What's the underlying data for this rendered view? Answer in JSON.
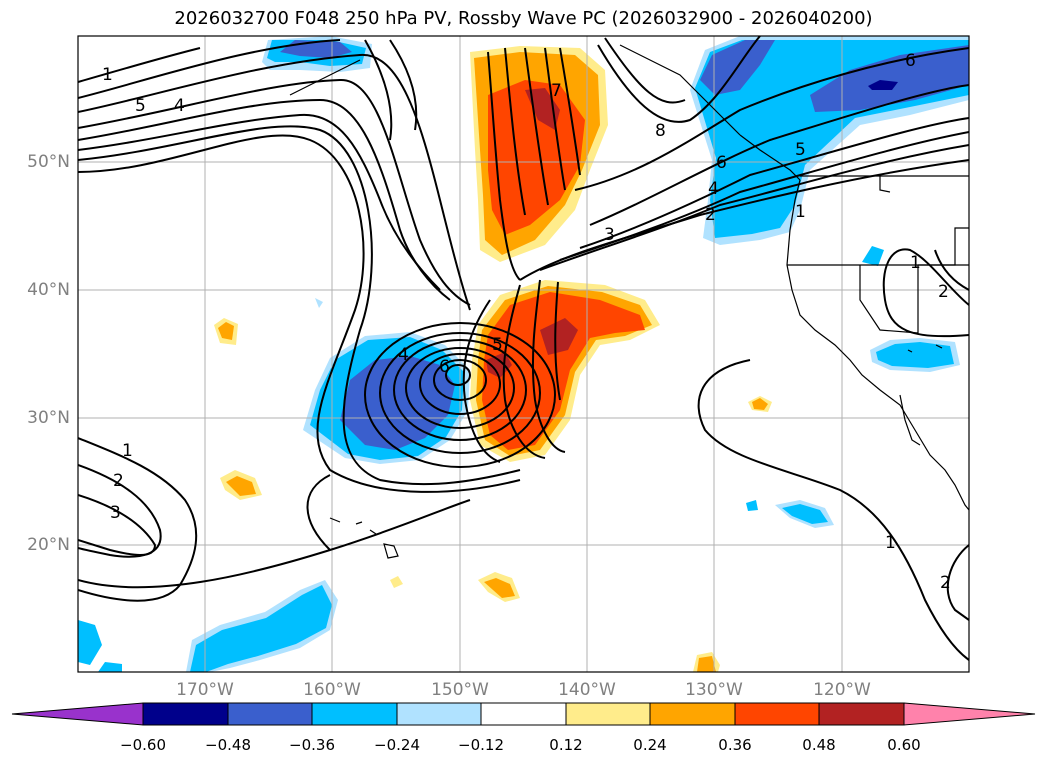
{
  "title": "2026032700 F048 250 hPa PV, Rossby Wave PC (2026032900 - 2026040200)",
  "map": {
    "lat_labels": [
      "50°N",
      "40°N",
      "30°N",
      "20°N"
    ],
    "lon_labels": [
      "170°W",
      "160°W",
      "150°W",
      "140°W",
      "130°W",
      "120°W"
    ],
    "colors": {
      "neg_extreme": "#9932cc",
      "neg_060": "#00008b",
      "neg_048": "#3a5fcd",
      "neg_036": "#00bfff",
      "neg_024": "#b0e2ff",
      "neutral": "#ffffff",
      "pos_012": "#ffec8b",
      "pos_024": "#ffa500",
      "pos_036": "#ff4500",
      "pos_048": "#b22222",
      "pos_extreme": "#ff82ab"
    },
    "contour_labels": [
      {
        "id": "c1",
        "text": "1"
      },
      {
        "id": "c2",
        "text": "5"
      },
      {
        "id": "c3",
        "text": "4"
      },
      {
        "id": "c4",
        "text": "7"
      },
      {
        "id": "c5",
        "text": "8"
      },
      {
        "id": "c6",
        "text": "6"
      },
      {
        "id": "c7",
        "text": "5"
      },
      {
        "id": "c8",
        "text": "4"
      },
      {
        "id": "c9",
        "text": "2"
      },
      {
        "id": "c10",
        "text": "1"
      },
      {
        "id": "c11",
        "text": "3"
      },
      {
        "id": "c12",
        "text": "4"
      },
      {
        "id": "c13",
        "text": "6"
      },
      {
        "id": "c14",
        "text": "5"
      },
      {
        "id": "c15",
        "text": "1"
      },
      {
        "id": "c16",
        "text": "2"
      },
      {
        "id": "c17",
        "text": "3"
      },
      {
        "id": "c18",
        "text": "1"
      },
      {
        "id": "c19",
        "text": "2"
      },
      {
        "id": "c20",
        "text": "6"
      },
      {
        "id": "c21",
        "text": "1"
      },
      {
        "id": "c22",
        "text": "2"
      }
    ]
  },
  "colorbar": {
    "ticks": [
      "−0.60",
      "−0.48",
      "−0.36",
      "−0.24",
      "−0.12",
      "0.12",
      "0.24",
      "0.36",
      "0.48",
      "0.60"
    ]
  }
}
